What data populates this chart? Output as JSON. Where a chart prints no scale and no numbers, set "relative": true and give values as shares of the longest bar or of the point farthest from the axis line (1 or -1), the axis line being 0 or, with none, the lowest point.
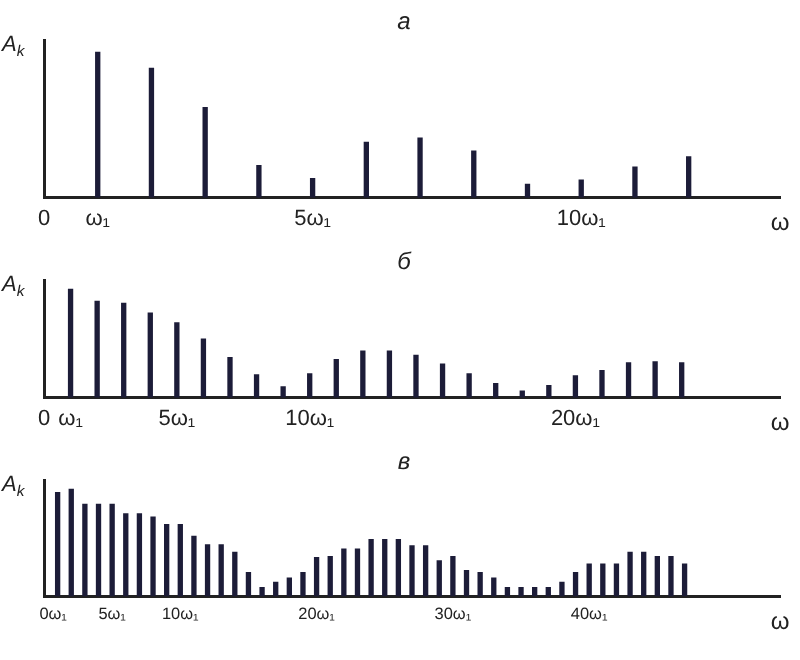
{
  "chart_data": [
    {
      "type": "bar",
      "title": "а",
      "xlabel": "ω",
      "ylabel": "A$_{k}$",
      "relative": true,
      "color": "#1c1c38",
      "x": [
        1,
        2,
        3,
        4,
        5,
        6,
        7,
        8,
        9,
        10,
        11,
        12
      ],
      "values": [
        1,
        0.89,
        0.62,
        0.22,
        0.13,
        0.38,
        0.41,
        0.32,
        0.09,
        0.12,
        0.21,
        0.28
      ],
      "xlim": [
        0,
        13.7
      ],
      "xticks": [
        {
          "value": 0,
          "label": "0"
        },
        {
          "value": 1,
          "label": "ω₁"
        },
        {
          "value": 5,
          "label": "5ω₁"
        },
        {
          "value": 10,
          "label": "10ω₁"
        }
      ]
    },
    {
      "type": "bar",
      "title": "б",
      "xlabel": "ω",
      "ylabel": "A$_{k}$",
      "relative": true,
      "color": "#1c1c38",
      "x": [
        1,
        2,
        3,
        4,
        5,
        6,
        7,
        8,
        9,
        10,
        11,
        12,
        13,
        14,
        15,
        16,
        17,
        18,
        19,
        20,
        21,
        22,
        23,
        24
      ],
      "values": [
        1,
        0.89,
        0.87,
        0.78,
        0.69,
        0.54,
        0.37,
        0.21,
        0.1,
        0.22,
        0.35,
        0.43,
        0.43,
        0.39,
        0.31,
        0.22,
        0.13,
        0.06,
        0.11,
        0.2,
        0.25,
        0.32,
        0.33,
        0.32
      ],
      "xlim": [
        0,
        27.7
      ],
      "xticks": [
        {
          "value": 0,
          "label": "0"
        },
        {
          "value": 1,
          "label": "ω₁"
        },
        {
          "value": 5,
          "label": "5ω₁"
        },
        {
          "value": 10,
          "label": "10ω₁"
        },
        {
          "value": 20,
          "label": "20ω₁"
        }
      ]
    },
    {
      "type": "bar",
      "title": "в",
      "xlabel": "ω",
      "ylabel": "A$_{k}$",
      "relative": true,
      "color": "#1c1c38",
      "x": [
        1,
        2,
        3,
        4,
        5,
        6,
        7,
        8,
        9,
        10,
        11,
        12,
        13,
        14,
        15,
        16,
        17,
        18,
        19,
        20,
        21,
        22,
        23,
        24,
        25,
        26,
        27,
        28,
        29,
        30,
        31,
        32,
        33,
        34,
        35,
        36,
        37,
        38,
        39,
        40,
        41,
        42,
        43,
        44,
        45,
        46,
        47
      ],
      "values": [
        0.97,
        1,
        0.86,
        0.86,
        0.86,
        0.77,
        0.77,
        0.74,
        0.67,
        0.67,
        0.56,
        0.48,
        0.48,
        0.41,
        0.22,
        0.08,
        0.13,
        0.17,
        0.22,
        0.36,
        0.37,
        0.44,
        0.44,
        0.53,
        0.53,
        0.53,
        0.47,
        0.47,
        0.33,
        0.37,
        0.24,
        0.22,
        0.17,
        0.08,
        0.08,
        0.08,
        0.08,
        0.13,
        0.22,
        0.3,
        0.3,
        0.3,
        0.41,
        0.41,
        0.37,
        0.37,
        0.3
      ],
      "xlim": [
        0,
        54
      ],
      "xticks": [
        {
          "value": 0,
          "label": "0"
        },
        {
          "value": 1,
          "label": "ω₁"
        },
        {
          "value": 5,
          "label": "5ω₁"
        },
        {
          "value": 10,
          "label": "10ω₁"
        },
        {
          "value": 20,
          "label": "20ω₁"
        },
        {
          "value": 30,
          "label": "30ω₁"
        },
        {
          "value": 40,
          "label": "40ω₁"
        }
      ]
    }
  ]
}
